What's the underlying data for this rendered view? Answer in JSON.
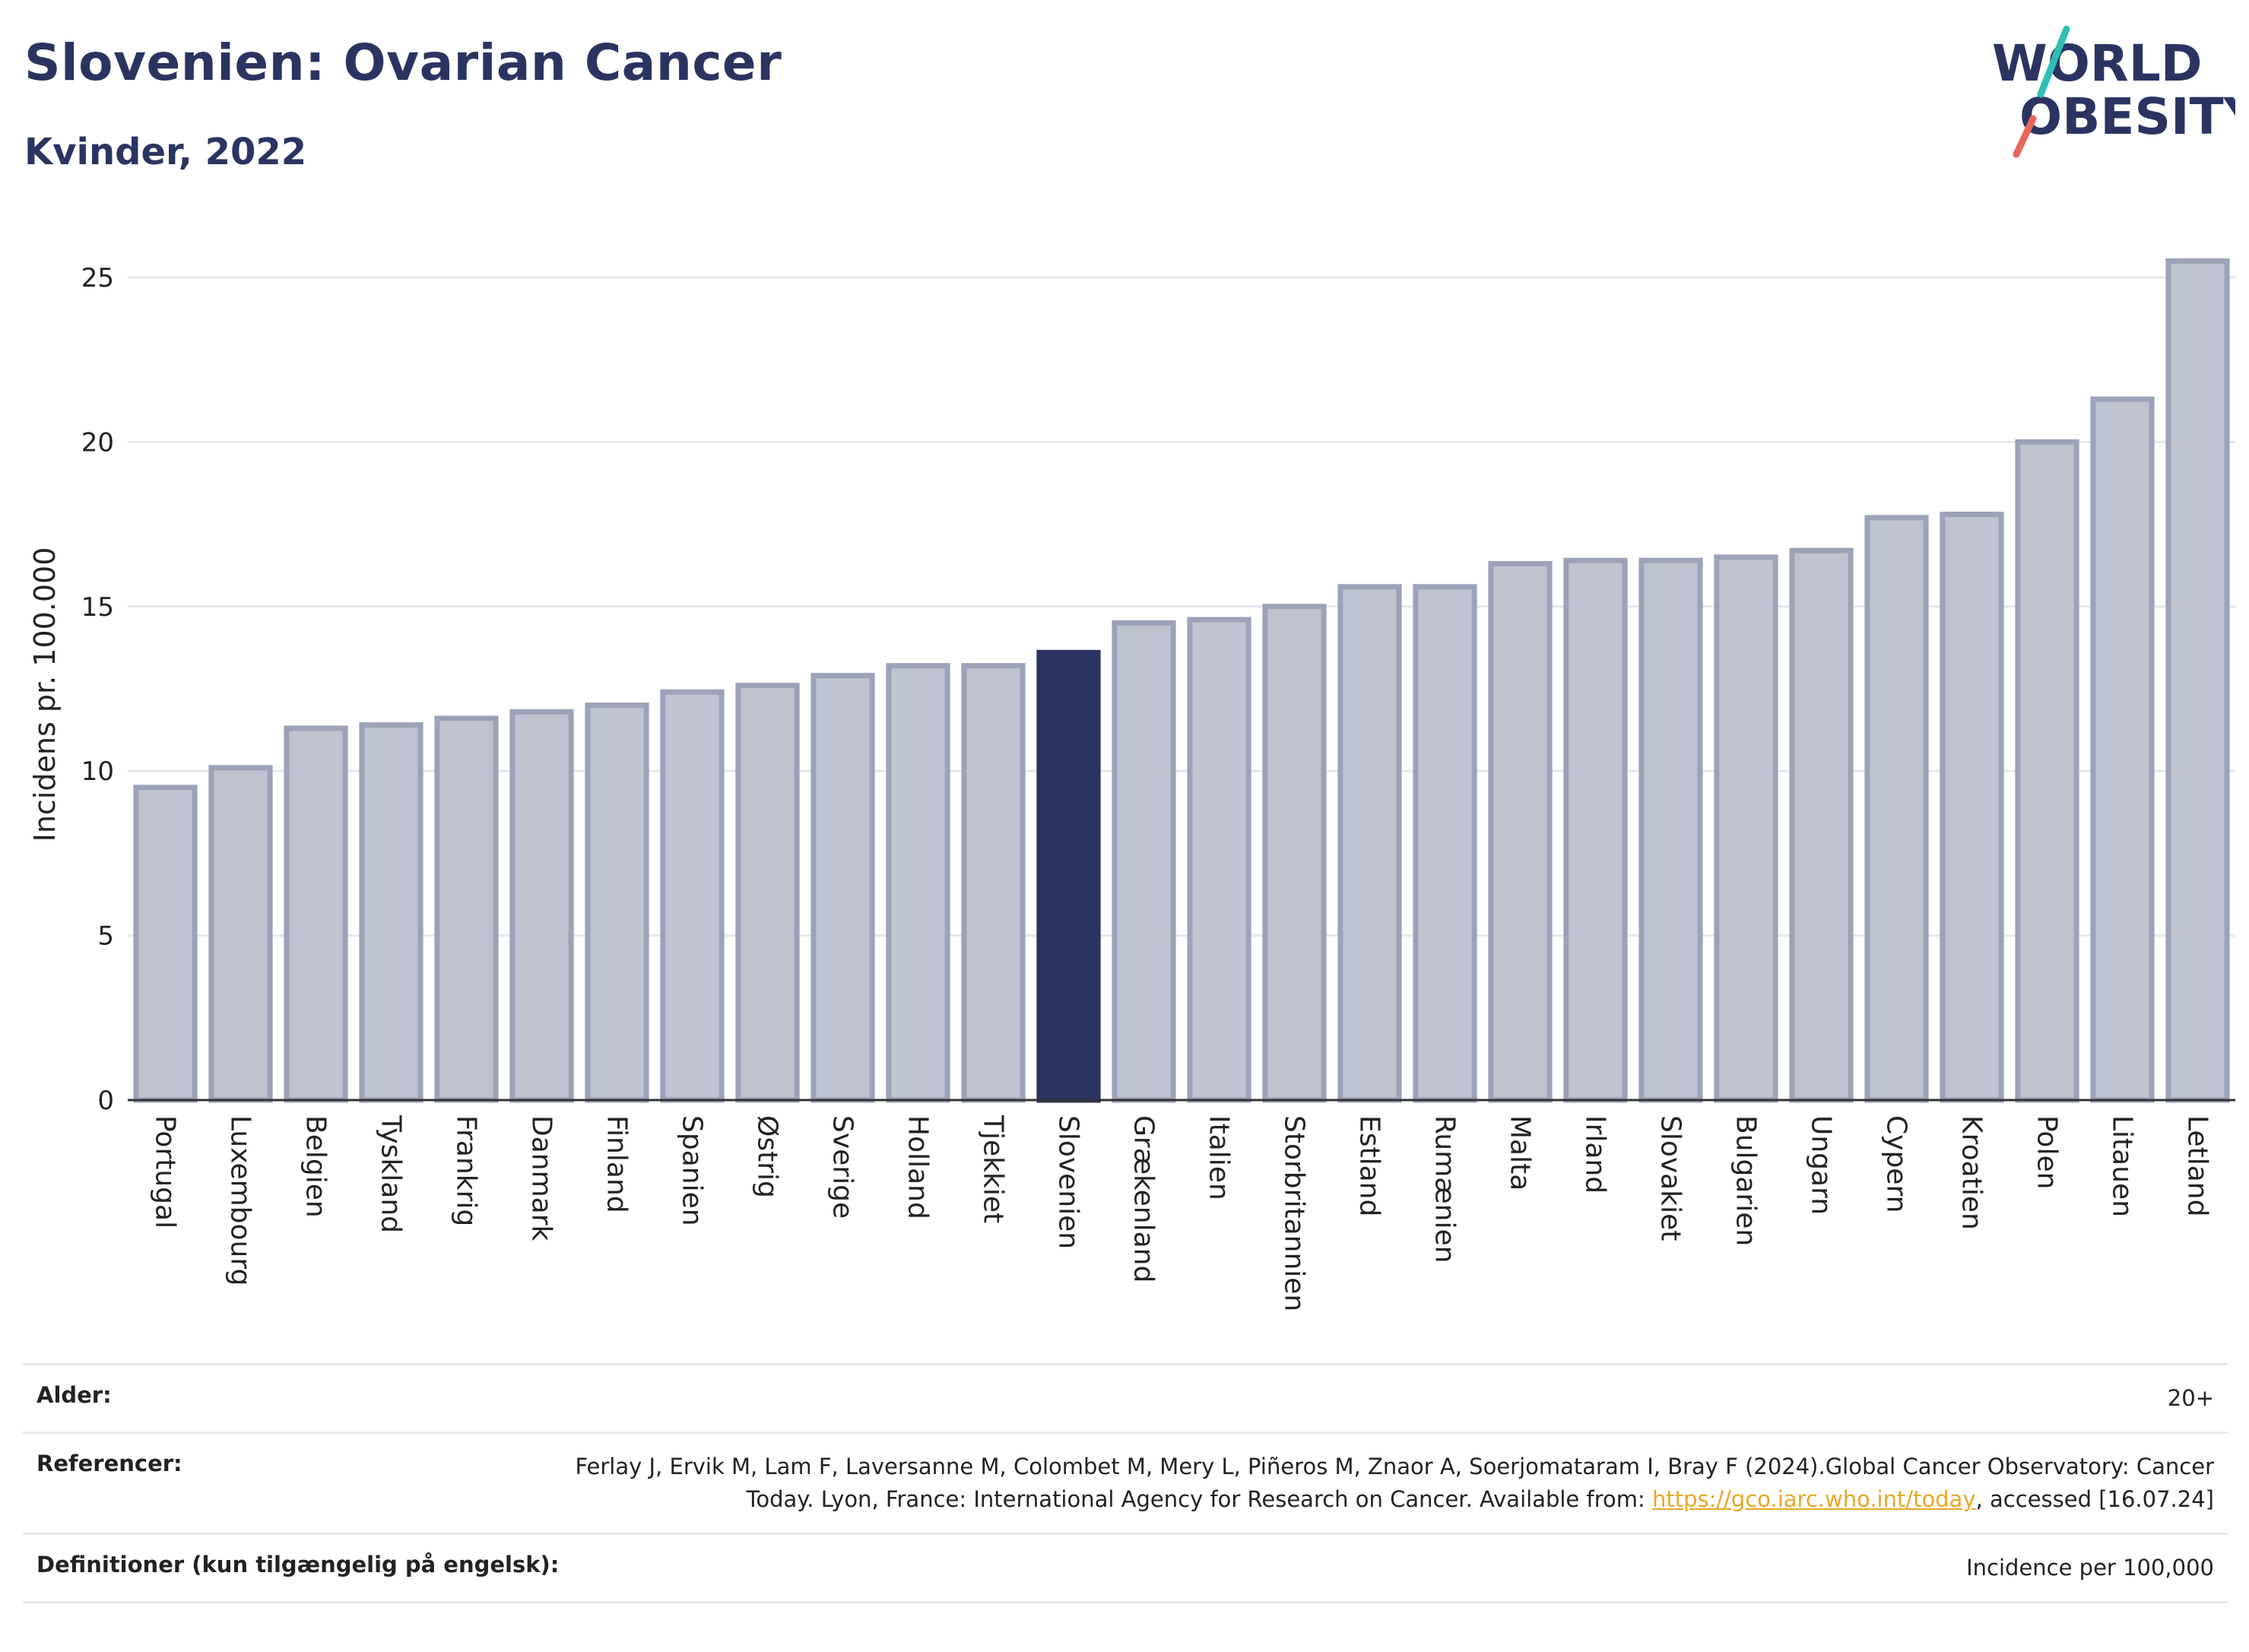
{
  "header": {
    "title": "Slovenien: Ovarian Cancer",
    "subtitle": "Kvinder, 2022"
  },
  "logo": {
    "line1": "WORLD",
    "line2": "OBESITY",
    "text_color": "#2b3461",
    "slash_teal": "#2fbfb5",
    "slash_red": "#e8665a"
  },
  "colors": {
    "bar_fill": "#bfc2cf",
    "bar_stroke": "#9ca2b8",
    "highlight_fill": "#2b3461",
    "grid": "#e6e7ee",
    "axis": "#333333"
  },
  "chart_data": {
    "type": "bar",
    "ylabel": "Incidens pr. 100.000",
    "xlabel": "",
    "ylim": [
      0,
      26.5
    ],
    "yticks": [
      0,
      5,
      10,
      15,
      20,
      25
    ],
    "grid": true,
    "highlight": "Slovenien",
    "categories": [
      "Portugal",
      "Luxembourg",
      "Belgien",
      "Tyskland",
      "Frankrig",
      "Danmark",
      "Finland",
      "Spanien",
      "Østrig",
      "Sverige",
      "Holland",
      "Tjekkiet",
      "Slovenien",
      "Grækenland",
      "Italien",
      "Storbritannien",
      "Estland",
      "Rumænien",
      "Malta",
      "Irland",
      "Slovakiet",
      "Bulgarien",
      "Ungarn",
      "Cypern",
      "Kroatien",
      "Polen",
      "Litauen",
      "Letland"
    ],
    "values": [
      9.5,
      10.1,
      11.3,
      11.4,
      11.6,
      11.8,
      12.0,
      12.4,
      12.6,
      12.9,
      13.2,
      13.2,
      13.6,
      14.5,
      14.6,
      15.0,
      15.6,
      15.6,
      16.3,
      16.4,
      16.4,
      16.5,
      16.7,
      17.7,
      17.8,
      20.0,
      21.3,
      25.5
    ]
  },
  "meta": {
    "age_label": "Alder:",
    "age_value": "20+",
    "ref_label": "Referencer:",
    "ref_text_1": "Ferlay J, Ervik M, Lam F, Laversanne M, Colombet M, Mery L, Piñeros M, Znaor A, Soerjomataram I, Bray F (2024).Global Cancer Observatory: Cancer Today. Lyon, France: International Agency for Research on Cancer. Available from: ",
    "ref_link": "https://gco.iarc.who.int/today",
    "ref_text_2": ", accessed [16.07.24]",
    "def_label": "Definitioner (kun tilgængelig på engelsk):",
    "def_value": "Incidence per 100,000"
  }
}
